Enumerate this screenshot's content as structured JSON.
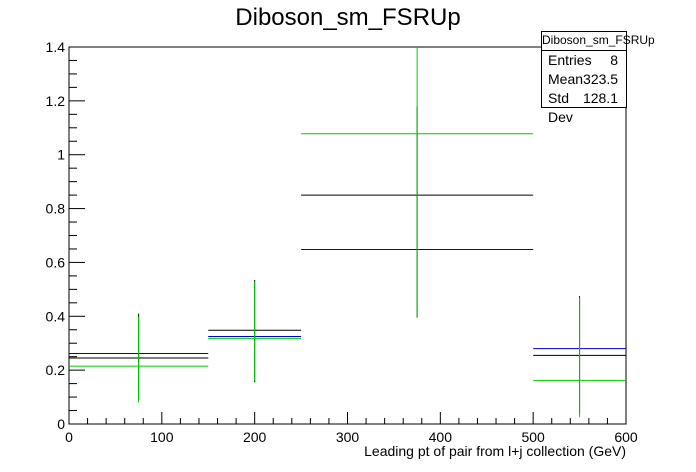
{
  "title": "Diboson_sm_FSRUp",
  "stats": {
    "name": "Diboson_sm_FSRUp",
    "rows": [
      {
        "label": "Entries",
        "value": "8"
      },
      {
        "label": "Mean",
        "value": "323.5"
      },
      {
        "label": "Std Dev",
        "value": "128.1"
      }
    ]
  },
  "chart_data": {
    "type": "bar",
    "title": "Diboson_sm_FSRUp",
    "xlabel": "Leading pt of pair from l+j collection (GeV)",
    "ylabel": "",
    "xlim": [
      0,
      600
    ],
    "ylim": [
      0,
      1.4
    ],
    "xticks": [
      0,
      100,
      200,
      300,
      400,
      500,
      600
    ],
    "xtick_labels": [
      "0",
      "100",
      "200",
      "300",
      "400",
      "500",
      "600"
    ],
    "yticks": [
      0,
      0.2,
      0.4,
      0.6,
      0.8,
      1,
      1.2,
      1.4
    ],
    "ytick_labels": [
      "0",
      "0.2",
      "0.4",
      "0.6",
      "0.8",
      "1",
      "1.2",
      "1.4"
    ],
    "bin_edges": [
      0,
      150,
      250,
      500,
      600
    ],
    "series": [
      {
        "color": "#000000",
        "values": [
          0.245,
          0.348,
          0.85,
          0.255
        ],
        "err_low": [
          0.09,
          0.155,
          0.395,
          0.04
        ],
        "err_high": [
          0.41,
          0.535,
          1.18,
          0.475
        ]
      },
      {
        "color": "#0000cc",
        "values": [
          0.262,
          0.325,
          0.648,
          0.28
        ]
      },
      {
        "color": "#00cc00",
        "values": [
          0.215,
          0.318,
          1.078,
          0.162
        ],
        "err_low": [
          0.08,
          0.16,
          0.395,
          0.025
        ],
        "err_high": [
          0.4,
          0.53,
          1.4,
          0.47
        ]
      }
    ]
  }
}
